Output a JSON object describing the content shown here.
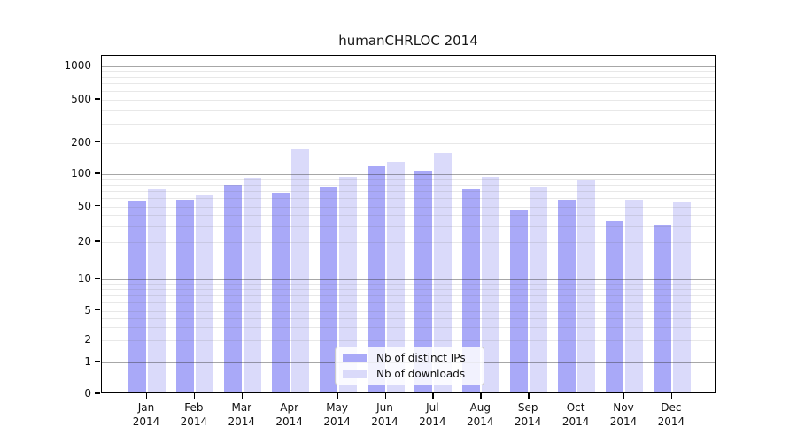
{
  "title": "humanCHRLOC 2014",
  "chart_data": {
    "type": "bar",
    "title": "humanCHRLOC 2014",
    "categories": [
      "Jan",
      "Feb",
      "Mar",
      "Apr",
      "May",
      "Jun",
      "Jul",
      "Aug",
      "Sep",
      "Oct",
      "Nov",
      "Dec"
    ],
    "category_year": "2014",
    "series": [
      {
        "name": "Nb of distinct IPs",
        "color": "#a9a9f8",
        "values": [
          54,
          56,
          76,
          65,
          73,
          114,
          105,
          70,
          44,
          56,
          33,
          30
        ]
      },
      {
        "name": "Nb of downloads",
        "color": "#dadafa",
        "values": [
          70,
          61,
          90,
          170,
          91,
          126,
          153,
          91,
          74,
          85,
          56,
          52
        ]
      }
    ],
    "xlabel": "",
    "ylabel": "",
    "yscale": "log",
    "ylim": [
      0,
      1000
    ],
    "yticks": [
      0,
      1,
      2,
      5,
      10,
      20,
      50,
      100,
      200,
      500,
      1000
    ],
    "grid": "horizontal major and minor gridlines",
    "legend_position": "bottom-center inside plot"
  },
  "legend": {
    "items": [
      {
        "label": "Nb of distinct IPs",
        "color": "#a9a9f8"
      },
      {
        "label": "Nb of downloads",
        "color": "#dadafa"
      }
    ]
  },
  "colors": {
    "background": "#ffffff",
    "bar_dark": "#a9a9f8",
    "bar_light": "#dadafa",
    "grid_major": "#ababab",
    "grid_minor": "#e8e8e8",
    "axis": "#000000",
    "text": "#111111"
  }
}
